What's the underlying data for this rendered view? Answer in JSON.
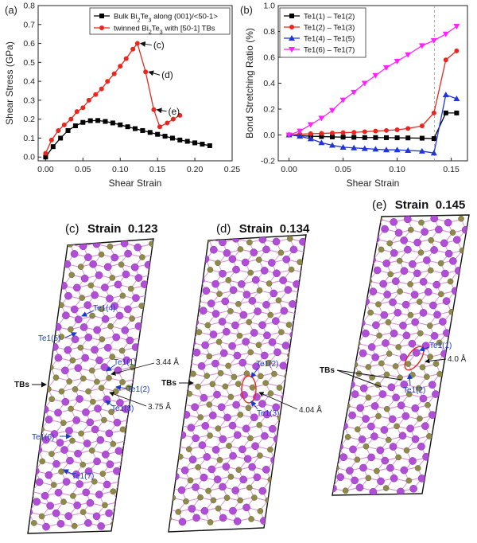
{
  "panels": {
    "a": {
      "label": "(a)"
    },
    "b": {
      "label": "(b)"
    },
    "c": {
      "label": "(c)",
      "title_prefix": "Strain",
      "title_value": "0.123"
    },
    "d": {
      "label": "(d)",
      "title_prefix": "Strain",
      "title_value": "0.134"
    },
    "e": {
      "label": "(e)",
      "title_prefix": "Strain",
      "title_value": "0.145"
    }
  },
  "chart_data": [
    {
      "id": "a",
      "type": "line",
      "xlabel": "Shear Strain",
      "ylabel": "Shear Stress (GPa)",
      "xlim": [
        -0.01,
        0.25
      ],
      "ylim": [
        -0.02,
        0.8
      ],
      "xticks": [
        0.0,
        0.05,
        0.1,
        0.15,
        0.2,
        0.25
      ],
      "xtick_labels": [
        "0.00",
        "0.05",
        "0.10",
        "0.15",
        "0.20",
        "0.25"
      ],
      "yticks": [
        0.0,
        0.1,
        0.2,
        0.3,
        0.4,
        0.5,
        0.6,
        0.7,
        0.8
      ],
      "ytick_labels": [
        "0.0",
        "0.1",
        "0.2",
        "0.3",
        "0.4",
        "0.5",
        "0.6",
        "0.7",
        "0.8"
      ],
      "legend_position": "top-right",
      "series": [
        {
          "name": "Bulk Bi2Te3 along (001)/<50-1>",
          "legend_parts": [
            "Bulk Bi",
            "2",
            "Te",
            "3",
            " along (001)/<50-1>"
          ],
          "color": "#000000",
          "marker": "square",
          "x": [
            0.0,
            0.01,
            0.02,
            0.03,
            0.04,
            0.05,
            0.06,
            0.07,
            0.08,
            0.09,
            0.1,
            0.11,
            0.12,
            0.13,
            0.14,
            0.15,
            0.16,
            0.17,
            0.18,
            0.19,
            0.2,
            0.21,
            0.22
          ],
          "y": [
            0.0,
            0.055,
            0.1,
            0.14,
            0.165,
            0.183,
            0.192,
            0.193,
            0.188,
            0.18,
            0.17,
            0.16,
            0.15,
            0.14,
            0.13,
            0.12,
            0.11,
            0.1,
            0.09,
            0.083,
            0.075,
            0.068,
            0.06
          ]
        },
        {
          "name": "twinned Bi2Te3 with [50-1] TBs",
          "legend_parts": [
            "twinned Bi",
            "2",
            "Te",
            "3",
            " with [50-1] TBs"
          ],
          "color": "#e8281e",
          "marker": "circle",
          "x": [
            0.0,
            0.008,
            0.017,
            0.025,
            0.034,
            0.042,
            0.05,
            0.058,
            0.067,
            0.075,
            0.083,
            0.092,
            0.1,
            0.108,
            0.117,
            0.123,
            0.134,
            0.145,
            0.153,
            0.163,
            0.171,
            0.18
          ],
          "y": [
            0.02,
            0.09,
            0.14,
            0.17,
            0.2,
            0.24,
            0.26,
            0.3,
            0.33,
            0.36,
            0.4,
            0.44,
            0.48,
            0.52,
            0.57,
            0.6,
            0.45,
            0.25,
            0.16,
            0.18,
            0.2,
            0.22
          ]
        }
      ],
      "annotations": [
        {
          "text": "(c)",
          "x": 0.123,
          "y": 0.6
        },
        {
          "text": "(d)",
          "x": 0.134,
          "y": 0.45
        },
        {
          "text": "(e)",
          "x": 0.145,
          "y": 0.25
        }
      ]
    },
    {
      "id": "b",
      "type": "line",
      "xlabel": "Shear Strain",
      "ylabel": "Bond Stretching Ratio (%)",
      "xlim": [
        -0.01,
        0.165
      ],
      "ylim": [
        -0.2,
        1.0
      ],
      "xticks": [
        0.0,
        0.05,
        0.1,
        0.15
      ],
      "xtick_labels": [
        "0.00",
        "0.05",
        "0.10",
        "0.15"
      ],
      "yticks": [
        -0.2,
        0.0,
        0.2,
        0.4,
        0.6,
        0.8,
        1.0
      ],
      "ytick_labels": [
        "-0.2",
        "0.0",
        "0.2",
        "0.4",
        "0.6",
        "0.8",
        "1.0"
      ],
      "vline_x": 0.1345,
      "legend_position": "top-left",
      "series": [
        {
          "name": "Te1(1) – Te1(2)",
          "color": "#000000",
          "marker": "square",
          "x": [
            0.0,
            0.01,
            0.02,
            0.03,
            0.04,
            0.05,
            0.06,
            0.07,
            0.08,
            0.09,
            0.1,
            0.11,
            0.123,
            0.134,
            0.145,
            0.155
          ],
          "y": [
            0.0,
            -0.005,
            -0.01,
            -0.012,
            -0.015,
            -0.017,
            -0.018,
            -0.02,
            -0.02,
            -0.021,
            -0.022,
            -0.023,
            -0.025,
            -0.028,
            0.17,
            0.17
          ]
        },
        {
          "name": "Te1(2) – Te1(3)",
          "color": "#e8281e",
          "marker": "circle",
          "x": [
            0.0,
            0.01,
            0.02,
            0.03,
            0.04,
            0.05,
            0.06,
            0.07,
            0.08,
            0.09,
            0.1,
            0.11,
            0.123,
            0.134,
            0.145,
            0.155
          ],
          "y": [
            0.0,
            0.005,
            0.01,
            0.012,
            0.015,
            0.018,
            0.02,
            0.025,
            0.03,
            0.035,
            0.04,
            0.05,
            0.07,
            0.17,
            0.58,
            0.65
          ]
        },
        {
          "name": "Te1(4) – Te1(5)",
          "color": "#1f35d8",
          "marker": "triangle-up",
          "x": [
            0.0,
            0.01,
            0.02,
            0.03,
            0.04,
            0.05,
            0.06,
            0.07,
            0.08,
            0.09,
            0.1,
            0.11,
            0.123,
            0.134,
            0.145,
            0.155
          ],
          "y": [
            0.0,
            -0.01,
            -0.03,
            -0.06,
            -0.08,
            -0.095,
            -0.1,
            -0.105,
            -0.11,
            -0.115,
            -0.115,
            -0.12,
            -0.125,
            -0.14,
            0.31,
            0.28
          ]
        },
        {
          "name": "Te1(6) – Te1(7)",
          "color": "#ff21ff",
          "marker": "triangle-down",
          "x": [
            0.0,
            0.01,
            0.02,
            0.03,
            0.04,
            0.05,
            0.06,
            0.07,
            0.08,
            0.09,
            0.1,
            0.11,
            0.123,
            0.134,
            0.145,
            0.155
          ],
          "y": [
            0.0,
            0.03,
            0.08,
            0.13,
            0.19,
            0.27,
            0.33,
            0.4,
            0.46,
            0.52,
            0.57,
            0.62,
            0.69,
            0.73,
            0.78,
            0.84
          ]
        }
      ]
    }
  ],
  "structures": {
    "c": {
      "tbs_label": "TBs",
      "atom_labels": [
        "Te1(4)",
        "Te1(5)",
        "Te1(1)",
        "Te1(2)",
        "Te1(3)",
        "Te1(6)",
        "Te1(7)"
      ],
      "distances": [
        "3.44 Å",
        "3.75 Å"
      ]
    },
    "d": {
      "tbs_label": "TBs",
      "atom_labels": [
        "Te1(2)",
        "Te1(3)"
      ],
      "distances": [
        "4.04 Å"
      ]
    },
    "e": {
      "tbs_label": "TBs",
      "atom_labels": [
        "Te1(1)",
        "Te1(2)"
      ],
      "distances": [
        "4.0 Å"
      ]
    }
  },
  "colors": {
    "bi_atom": "#b04fd6",
    "te_atom": "#8d8a4a",
    "bond": "#d98fd6",
    "label_blue": "#1a3cc9",
    "highlight_red": "#e8281e"
  }
}
